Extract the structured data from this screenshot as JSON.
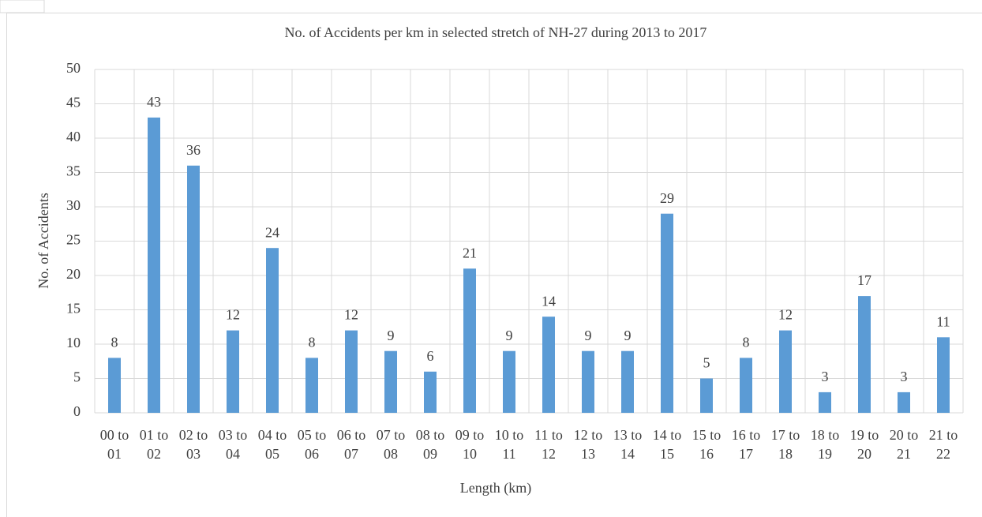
{
  "chart_data": {
    "type": "bar",
    "title": "No. of Accidents per km in selected stretch of NH-27 during 2013 to 2017",
    "x_label": "Length (km)",
    "y_label": "No. of Accidents",
    "categories": [
      "00 to 01",
      "01 to 02",
      "02 to 03",
      "03 to 04",
      "04 to 05",
      "05 to 06",
      "06 to 07",
      "07 to 08",
      "08 to 09",
      "09 to 10",
      "10 to 11",
      "11 to 12",
      "12 to 13",
      "13 to 14",
      "14 to 15",
      "15 to 16",
      "16 to 17",
      "17 to 18",
      "18 to 19",
      "19 to 20",
      "20 to 21",
      "21 to 22"
    ],
    "values": [
      8,
      43,
      36,
      12,
      24,
      8,
      12,
      9,
      6,
      21,
      9,
      14,
      9,
      9,
      29,
      5,
      8,
      12,
      3,
      17,
      3,
      11
    ],
    "color": "#5b9bd5",
    "ylim": [
      0,
      50
    ],
    "yticks": [
      0,
      5,
      10,
      15,
      20,
      25,
      30,
      35,
      40,
      45,
      50
    ],
    "grid": true
  }
}
